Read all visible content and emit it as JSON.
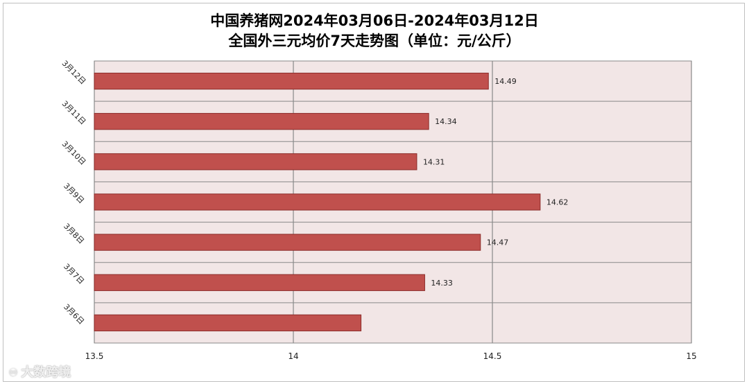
{
  "chart_data": {
    "type": "bar",
    "orientation": "horizontal",
    "title": "中国养猪网2024年03月06日-2024年03月12日",
    "subtitle": "全国外三元均价7天走势图（单位：元/公斤）",
    "categories": [
      "3月12日",
      "3月11日",
      "3月10日",
      "3月9日",
      "3月8日",
      "3月7日",
      "3月6日"
    ],
    "values": [
      14.49,
      14.34,
      14.31,
      14.62,
      14.47,
      14.33,
      14.17
    ],
    "data_labels": [
      "14.49",
      "14.34",
      "14.31",
      "14.62",
      "14.47",
      "14.33",
      ""
    ],
    "xlim": [
      13.5,
      15
    ],
    "xticks": [
      13.5,
      14,
      14.5,
      15
    ],
    "xtick_labels": [
      "13.5",
      "14",
      "14.5",
      "15"
    ],
    "grid": true,
    "colors": {
      "bar_fill": "#c0504d",
      "bar_stroke": "#8b2c2a",
      "plot_background": "#f2e6e6",
      "grid": "#888888"
    }
  },
  "watermark": {
    "text": "大数跨境",
    "icon": "logo-icon"
  }
}
